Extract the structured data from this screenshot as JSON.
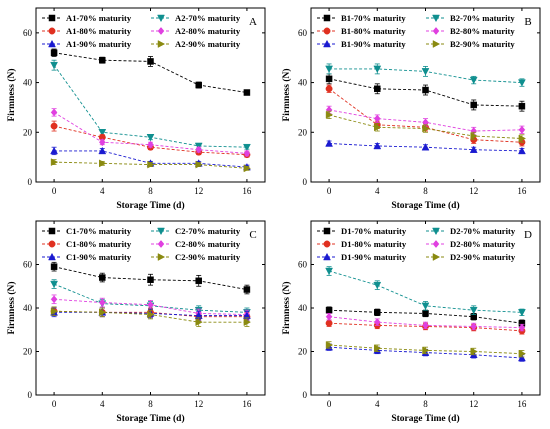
{
  "figure": {
    "colors": {
      "m70_a": "#000000",
      "m70_b": "#0f8f8f",
      "m80_a": "#e03020",
      "m80_b": "#e040e0",
      "m90_a": "#1a1ad0",
      "m90_b": "#8a8a10"
    }
  },
  "chart_data": [
    {
      "type": "line",
      "panel": "A",
      "xlabel": "Storage Time (d)",
      "ylabel": "Firmness (N)",
      "x": [
        0,
        4,
        8,
        12,
        16
      ],
      "xticks": [
        "0",
        "4",
        "8",
        "12",
        "16"
      ],
      "xlim": [
        -1.5,
        17.5
      ],
      "ylim": [
        0,
        70
      ],
      "yticks": [
        "0",
        "20",
        "40",
        "60"
      ],
      "legend_position": "top-left",
      "series": [
        {
          "name": "A1-70% maturity",
          "marker": "square",
          "color": "#000000",
          "values": [
            52,
            49,
            48.5,
            39,
            36
          ],
          "err": [
            1.5,
            1.2,
            2.0,
            1.2,
            1.0
          ]
        },
        {
          "name": "A2-70% maturity",
          "marker": "triangle-down",
          "color": "#0f8f8f",
          "values": [
            47,
            20,
            18,
            14.5,
            14
          ],
          "err": [
            2.0,
            1.0,
            1.0,
            1.0,
            0.8
          ]
        },
        {
          "name": "A1-80% maturity",
          "marker": "circle",
          "color": "#e03020",
          "values": [
            22.5,
            18,
            14,
            12,
            11
          ],
          "err": [
            2.0,
            1.0,
            1.0,
            1.0,
            1.0
          ]
        },
        {
          "name": "A2-80% maturity",
          "marker": "diamond",
          "color": "#e040e0",
          "values": [
            28,
            16,
            15,
            13,
            11.5
          ],
          "err": [
            1.5,
            1.0,
            1.0,
            1.0,
            1.0
          ]
        },
        {
          "name": "A1-90% maturity",
          "marker": "triangle-up",
          "color": "#1a1ad0",
          "values": [
            12.5,
            12.5,
            7.5,
            7.5,
            6
          ],
          "err": [
            1.5,
            1.0,
            0.8,
            0.8,
            0.8
          ]
        },
        {
          "name": "A2-90% maturity",
          "marker": "triangle-right",
          "color": "#8a8a10",
          "values": [
            8,
            7.5,
            7,
            7,
            5.5
          ],
          "err": [
            1.0,
            0.8,
            0.8,
            0.8,
            0.8
          ]
        }
      ]
    },
    {
      "type": "line",
      "panel": "B",
      "xlabel": "Storage Time (d)",
      "ylabel": "Firmness (N)",
      "x": [
        0,
        4,
        8,
        12,
        16
      ],
      "xticks": [
        "0",
        "4",
        "8",
        "12",
        "16"
      ],
      "xlim": [
        -1.5,
        17.5
      ],
      "ylim": [
        0,
        70
      ],
      "yticks": [
        "0",
        "20",
        "40",
        "60"
      ],
      "legend_position": "top-left",
      "series": [
        {
          "name": "B1-70% maturity",
          "marker": "square",
          "color": "#000000",
          "values": [
            41.5,
            37.5,
            37,
            31,
            30.5
          ],
          "err": [
            2.0,
            2.0,
            2.0,
            2.0,
            2.0
          ]
        },
        {
          "name": "B2-70% maturity",
          "marker": "triangle-down",
          "color": "#0f8f8f",
          "values": [
            45.5,
            45.5,
            44.5,
            41,
            40
          ],
          "err": [
            2.0,
            2.0,
            2.0,
            1.5,
            1.5
          ]
        },
        {
          "name": "B1-80% maturity",
          "marker": "circle",
          "color": "#e03020",
          "values": [
            37.5,
            23,
            22,
            17,
            16
          ],
          "err": [
            1.5,
            1.5,
            1.5,
            1.5,
            1.5
          ]
        },
        {
          "name": "B2-80% maturity",
          "marker": "diamond",
          "color": "#e040e0",
          "values": [
            29,
            25.5,
            24,
            20.5,
            21
          ],
          "err": [
            1.5,
            1.5,
            1.5,
            1.5,
            1.5
          ]
        },
        {
          "name": "B1-90% maturity",
          "marker": "triangle-up",
          "color": "#1a1ad0",
          "values": [
            15.5,
            14.5,
            14,
            13,
            12.5
          ],
          "err": [
            1.0,
            1.0,
            1.0,
            1.0,
            1.0
          ]
        },
        {
          "name": "B2-90% maturity",
          "marker": "triangle-right",
          "color": "#8a8a10",
          "values": [
            27,
            22,
            21.5,
            18.5,
            17.5
          ],
          "err": [
            1.5,
            1.5,
            1.5,
            1.5,
            1.5
          ]
        }
      ]
    },
    {
      "type": "line",
      "panel": "C",
      "xlabel": "Storage Time (d)",
      "ylabel": "Firmness (N)",
      "x": [
        0,
        4,
        8,
        12,
        16
      ],
      "xticks": [
        "0",
        "4",
        "8",
        "12",
        "16"
      ],
      "xlim": [
        -1.5,
        17.5
      ],
      "ylim": [
        0,
        80
      ],
      "yticks": [
        "0",
        "20",
        "40",
        "60"
      ],
      "legend_position": "top-left",
      "series": [
        {
          "name": "C1-70% maturity",
          "marker": "square",
          "color": "#000000",
          "values": [
            59,
            54,
            53,
            52.5,
            48.5
          ],
          "err": [
            2.0,
            2.0,
            2.5,
            2.5,
            2.0
          ]
        },
        {
          "name": "C2-70% maturity",
          "marker": "triangle-down",
          "color": "#0f8f8f",
          "values": [
            51,
            42,
            41,
            39,
            38
          ],
          "err": [
            2.0,
            2.0,
            2.0,
            2.0,
            2.0
          ]
        },
        {
          "name": "C1-80% maturity",
          "marker": "circle",
          "color": "#e03020",
          "values": [
            38.5,
            38,
            38,
            36,
            36
          ],
          "err": [
            2.0,
            2.0,
            2.0,
            2.0,
            2.0
          ]
        },
        {
          "name": "C2-80% maturity",
          "marker": "diamond",
          "color": "#e040e0",
          "values": [
            44,
            42.5,
            41.5,
            37.5,
            37
          ],
          "err": [
            2.0,
            2.0,
            2.0,
            2.0,
            2.0
          ]
        },
        {
          "name": "C1-90% maturity",
          "marker": "triangle-up",
          "color": "#1a1ad0",
          "values": [
            38,
            38,
            37.5,
            36.5,
            36.5
          ],
          "err": [
            2.0,
            2.0,
            2.0,
            2.0,
            2.0
          ]
        },
        {
          "name": "C2-90% maturity",
          "marker": "triangle-right",
          "color": "#8a8a10",
          "values": [
            38.5,
            38,
            37,
            33.5,
            33.5
          ],
          "err": [
            2.0,
            2.0,
            2.0,
            2.0,
            2.0
          ]
        }
      ]
    },
    {
      "type": "line",
      "panel": "D",
      "xlabel": "Storage Time (d)",
      "ylabel": "Firmness (N)",
      "x": [
        0,
        4,
        8,
        12,
        16
      ],
      "xticks": [
        "0",
        "4",
        "8",
        "12",
        "16"
      ],
      "xlim": [
        -1.5,
        17.5
      ],
      "ylim": [
        0,
        80
      ],
      "yticks": [
        "0",
        "20",
        "40",
        "60"
      ],
      "legend_position": "top-left",
      "series": [
        {
          "name": "D1-70% maturity",
          "marker": "square",
          "color": "#000000",
          "values": [
            39,
            38,
            37.5,
            36,
            33
          ],
          "err": [
            1.5,
            1.5,
            1.5,
            1.5,
            1.5
          ]
        },
        {
          "name": "D2-70% maturity",
          "marker": "triangle-down",
          "color": "#0f8f8f",
          "values": [
            57,
            50.5,
            41,
            39,
            38
          ],
          "err": [
            2.0,
            2.0,
            2.0,
            2.0,
            1.5
          ]
        },
        {
          "name": "D1-80% maturity",
          "marker": "circle",
          "color": "#e03020",
          "values": [
            33,
            32,
            31.5,
            31,
            29.5
          ],
          "err": [
            1.5,
            1.5,
            1.5,
            1.5,
            1.5
          ]
        },
        {
          "name": "D2-80% maturity",
          "marker": "diamond",
          "color": "#e040e0",
          "values": [
            36,
            33.5,
            32,
            31.5,
            31
          ],
          "err": [
            1.5,
            1.5,
            1.5,
            1.5,
            1.5
          ]
        },
        {
          "name": "D1-90% maturity",
          "marker": "triangle-up",
          "color": "#1a1ad0",
          "values": [
            22,
            20.5,
            19.5,
            18.5,
            17
          ],
          "err": [
            1.5,
            1.5,
            1.5,
            1.5,
            1.5
          ]
        },
        {
          "name": "D2-90% maturity",
          "marker": "triangle-right",
          "color": "#8a8a10",
          "values": [
            23,
            21.5,
            20.5,
            20,
            19
          ],
          "err": [
            1.5,
            1.5,
            1.5,
            1.5,
            1.5
          ]
        }
      ]
    }
  ]
}
